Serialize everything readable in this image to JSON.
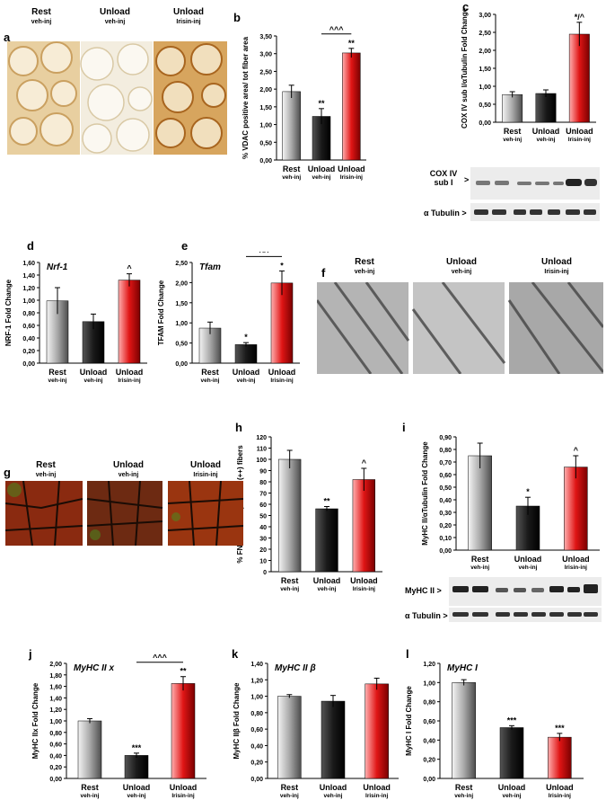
{
  "colors": {
    "rest": "#9a9a9a",
    "unload": "#1a1a1a",
    "irisin": "#d41111"
  },
  "groups": [
    {
      "name": "Rest",
      "sub": "veh-inj"
    },
    {
      "name": "Unload",
      "sub": "veh-inj"
    },
    {
      "name": "Unload",
      "sub": "Irisin-inj"
    }
  ],
  "panels": {
    "a": "a",
    "b": "b",
    "c": "c",
    "d": "d",
    "e": "e",
    "f": "f",
    "g": "g",
    "h": "h",
    "i": "i",
    "j": "j",
    "k": "k",
    "l": "l"
  },
  "blots": {
    "c_cox": "COX IV sub I",
    "c_cox_arrow": ">",
    "c_tubulin": "α Tubulin >",
    "i_myhc": "MyHC II >",
    "i_tubulin": "α Tubulin >"
  },
  "chart_data": [
    {
      "panel": "b",
      "type": "bar",
      "ylabel": "% VDAC positive area/ tot fiber area",
      "ylim": [
        0,
        3.5
      ],
      "ticks": [
        "0,00",
        "0,50",
        "1,00",
        "1,50",
        "2,00",
        "2,50",
        "3,00",
        "3,50"
      ],
      "values": [
        1.93,
        1.23,
        3.02
      ],
      "errors": [
        0.18,
        0.22,
        0.13
      ],
      "annotations": [
        "",
        "**",
        "**"
      ],
      "bracket": "^^^"
    },
    {
      "panel": "c",
      "type": "bar",
      "ylabel": "COX IV sub I/αTubulin Fold Change",
      "ylim": [
        0,
        3
      ],
      "ticks": [
        "0,00",
        "0,50",
        "1,00",
        "1,50",
        "2,00",
        "2,50",
        "3,00"
      ],
      "values": [
        0.77,
        0.8,
        2.45
      ],
      "errors": [
        0.08,
        0.1,
        0.33
      ],
      "annotations": [
        "",
        "",
        "*/^"
      ]
    },
    {
      "panel": "d",
      "type": "bar",
      "title": "Nrf-1",
      "ylabel": "NRF-1 Fold Change",
      "ylim": [
        0,
        1.6
      ],
      "ticks": [
        "0,00",
        "0,20",
        "0,40",
        "0,60",
        "0,80",
        "1,00",
        "1,20",
        "1,40",
        "1,60"
      ],
      "values": [
        0.99,
        0.66,
        1.32
      ],
      "errors": [
        0.21,
        0.12,
        0.1
      ],
      "annotations": [
        "",
        "",
        "^"
      ]
    },
    {
      "panel": "e",
      "type": "bar",
      "title": "Tfam",
      "ylabel": "TFAM Fold Change",
      "ylim": [
        0,
        2.5
      ],
      "ticks": [
        "0,00",
        "0,50",
        "1,00",
        "1,50",
        "2,00",
        "2,50"
      ],
      "values": [
        0.87,
        0.46,
        1.99
      ],
      "errors": [
        0.15,
        0.05,
        0.3
      ],
      "annotations": [
        "",
        "*",
        "*"
      ],
      "bracket": "^^"
    },
    {
      "panel": "h",
      "type": "bar",
      "ylabel": "% FNDC5/ATP synthase (++) fibers",
      "ylim": [
        0,
        120
      ],
      "ticks": [
        "0",
        "10",
        "20",
        "30",
        "40",
        "50",
        "60",
        "70",
        "80",
        "90",
        "100",
        "110",
        "120"
      ],
      "values": [
        100,
        56,
        82
      ],
      "errors": [
        8,
        2,
        10
      ],
      "annotations": [
        "",
        "**",
        "^"
      ]
    },
    {
      "panel": "i",
      "type": "bar",
      "ylabel": "MyHC II/αTubulin Fold Change",
      "ylim": [
        0,
        0.9
      ],
      "ticks": [
        "0,00",
        "0,10",
        "0,20",
        "0,30",
        "0,40",
        "0,50",
        "0,60",
        "0,70",
        "0,80",
        "0,90"
      ],
      "values": [
        0.75,
        0.35,
        0.66
      ],
      "errors": [
        0.1,
        0.07,
        0.09
      ],
      "annotations": [
        "",
        "*",
        "^"
      ]
    },
    {
      "panel": "j",
      "type": "bar",
      "title": "MyHC II x",
      "ylabel": "MyHC IIx Fold Change",
      "ylim": [
        0,
        2
      ],
      "ticks": [
        "0,00",
        "0,20",
        "0,40",
        "0,60",
        "0,80",
        "1,00",
        "1,20",
        "1,40",
        "1,60",
        "1,80",
        "2,00"
      ],
      "values": [
        1.0,
        0.4,
        1.65
      ],
      "errors": [
        0.04,
        0.04,
        0.12
      ],
      "annotations": [
        "",
        "***",
        "**"
      ],
      "bracket": "^^^"
    },
    {
      "panel": "k",
      "type": "bar",
      "title": "MyHC II β",
      "ylabel": "MyHC IIβ Fold Change",
      "ylim": [
        0,
        1.4
      ],
      "ticks": [
        "0,00",
        "0,20",
        "0,40",
        "0,60",
        "0,80",
        "1,00",
        "1,20",
        "1,40"
      ],
      "values": [
        1.0,
        0.94,
        1.15
      ],
      "errors": [
        0.02,
        0.07,
        0.07
      ],
      "annotations": [
        "",
        "",
        ""
      ]
    },
    {
      "panel": "l",
      "type": "bar",
      "title": "MyHC I",
      "ylabel": "MyHC I Fold Change",
      "ylim": [
        0,
        1.2
      ],
      "ticks": [
        "0,00",
        "0,20",
        "0,40",
        "0,60",
        "0,80",
        "1,00",
        "1,20"
      ],
      "values": [
        1.0,
        0.53,
        0.43
      ],
      "errors": [
        0.03,
        0.02,
        0.04
      ],
      "annotations": [
        "",
        "***",
        "***"
      ]
    }
  ]
}
